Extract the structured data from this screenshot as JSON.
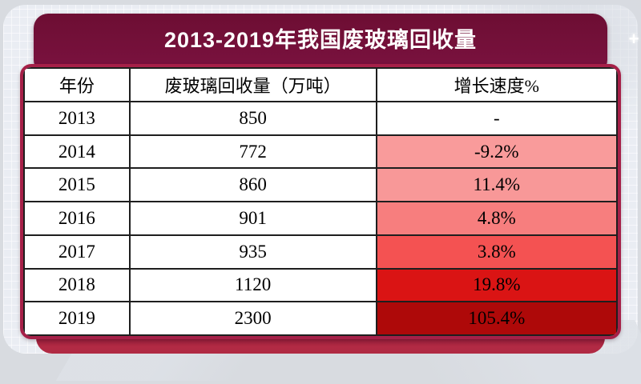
{
  "title": "2013-2019年我国废玻璃回收量",
  "sparkle_glyph": "+",
  "table": {
    "headers": {
      "year": "年份",
      "volume": "废玻璃回收量（万吨）",
      "growth": "增长速度%"
    },
    "rows": [
      {
        "year": "2013",
        "volume": "850",
        "growth": "-",
        "growth_bg": "#FFFFFF"
      },
      {
        "year": "2014",
        "volume": "772",
        "growth": "-9.2%",
        "growth_bg": "#F99B9B"
      },
      {
        "year": "2015",
        "volume": "860",
        "growth": "11.4%",
        "growth_bg": "#F89898"
      },
      {
        "year": "2016",
        "volume": "901",
        "growth": "4.8%",
        "growth_bg": "#F77E7E"
      },
      {
        "year": "2017",
        "volume": "935",
        "growth": "3.8%",
        "growth_bg": "#F45252"
      },
      {
        "year": "2018",
        "volume": "1120",
        "growth": "19.8%",
        "growth_bg": "#DA1414"
      },
      {
        "year": "2019",
        "volume": "2300",
        "growth": "105.4%",
        "growth_bg": "#AE0909"
      }
    ]
  },
  "colors": {
    "banner": "#75113A",
    "card_border": "#A62048",
    "footer_crimson": "#B22A44",
    "table_line": "#1E1E1E",
    "growth_scale": [
      "#F99B9B",
      "#F89898",
      "#F77E7E",
      "#F45252",
      "#DA1414",
      "#AE0909"
    ]
  },
  "chart_data": {
    "type": "table",
    "title": "2013-2019年我国废玻璃回收量",
    "columns": [
      "年份",
      "废玻璃回收量（万吨）",
      "增长速度%"
    ],
    "categories": [
      "2013",
      "2014",
      "2015",
      "2016",
      "2017",
      "2018",
      "2019"
    ],
    "series": [
      {
        "name": "废玻璃回收量（万吨）",
        "values": [
          850,
          772,
          860,
          901,
          935,
          1120,
          2300
        ]
      },
      {
        "name": "增长速度%",
        "values": [
          null,
          -9.2,
          11.4,
          4.8,
          3.8,
          19.8,
          105.4
        ]
      }
    ],
    "layout_hints": {
      "growth_column_heatmap": "light pink to dark red with larger recycling volume years",
      "legend_position": "none",
      "grid": false
    }
  }
}
